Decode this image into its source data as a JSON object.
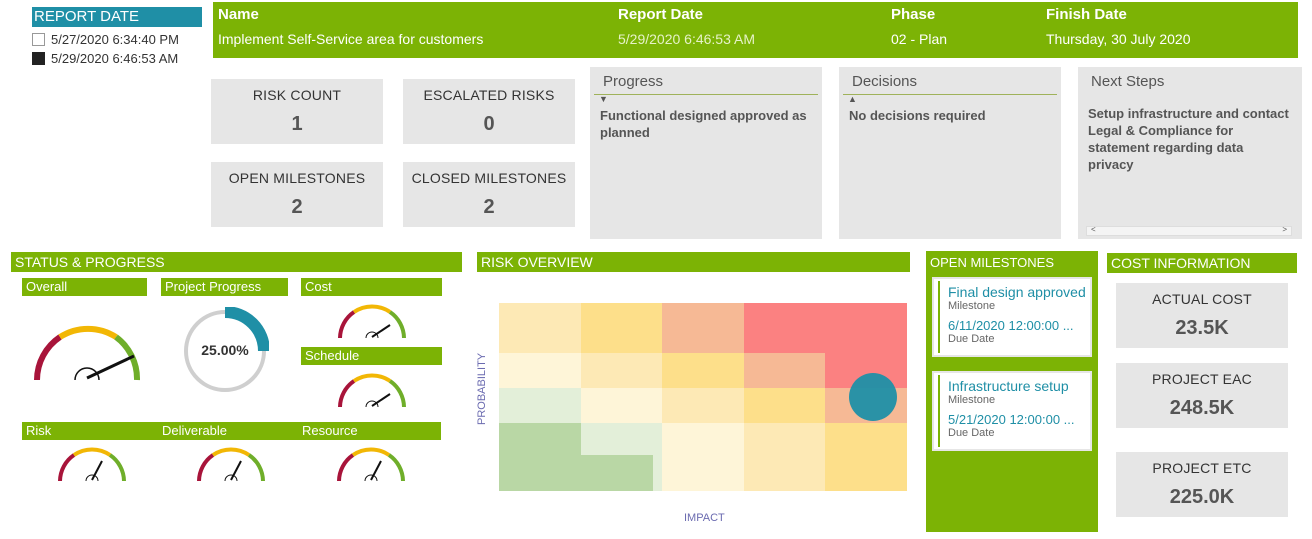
{
  "report_date_slicer": {
    "title": "REPORT DATE",
    "options": [
      {
        "label": "5/27/2020 6:34:40 PM",
        "selected": false
      },
      {
        "label": "5/29/2020 6:46:53 AM",
        "selected": true
      }
    ]
  },
  "banner": {
    "name_header": "Name",
    "name_value": "Implement Self-Service area for customers",
    "report_date_header": "Report Date",
    "report_date_value": "5/29/2020 6:46:53 AM",
    "phase_header": "Phase",
    "phase_value": "02 - Plan",
    "finish_header": "Finish Date",
    "finish_value": "Thursday, 30 July 2020"
  },
  "kpis": {
    "risk_count": {
      "label": "RISK COUNT",
      "value": "1"
    },
    "escalated_risks": {
      "label": "ESCALATED RISKS",
      "value": "0"
    },
    "open_milestones": {
      "label": "OPEN MILESTONES",
      "value": "2"
    },
    "closed_milestones": {
      "label": "CLOSED MILESTONES",
      "value": "2"
    }
  },
  "panels": {
    "progress": {
      "title": "Progress",
      "text": "Functional designed approved as planned"
    },
    "decisions": {
      "title": "Decisions",
      "text": "No decisions required"
    },
    "next_steps": {
      "title": "Next Steps",
      "text": "Setup infrastructure and contact Legal & Compliance for statement regarding data privacy"
    }
  },
  "status": {
    "title": "STATUS & PROGRESS",
    "overall": "Overall",
    "project_progress": "Project Progress",
    "project_progress_value": "25.00%",
    "project_progress_fraction": 0.25,
    "cost": "Cost",
    "schedule": "Schedule",
    "risk": "Risk",
    "deliverable": "Deliverable",
    "resource": "Resource"
  },
  "risk_overview": {
    "title": "RISK OVERVIEW",
    "y_axis": "PROBABILITY",
    "x_axis": "IMPACT"
  },
  "open_milestones": {
    "title": "OPEN MILESTONES",
    "items": [
      {
        "title": "Final design approved",
        "type": "Milestone",
        "date": "6/11/2020 12:00:00 ...",
        "date_label": "Due Date"
      },
      {
        "title": "Infrastructure setup",
        "type": "Milestone",
        "date": "5/21/2020 12:00:00 ...",
        "date_label": "Due Date"
      }
    ]
  },
  "cost_info": {
    "title": "COST INFORMATION",
    "actual_cost": {
      "label": "ACTUAL COST",
      "value": "23.5K"
    },
    "project_eac": {
      "label": "PROJECT EAC",
      "value": "248.5K"
    },
    "project_etc": {
      "label": "PROJECT ETC",
      "value": "225.0K"
    }
  },
  "colors": {
    "accent_green": "#7cb305",
    "accent_teal": "#1f8fa6",
    "card_gray": "#e6e6e6"
  }
}
